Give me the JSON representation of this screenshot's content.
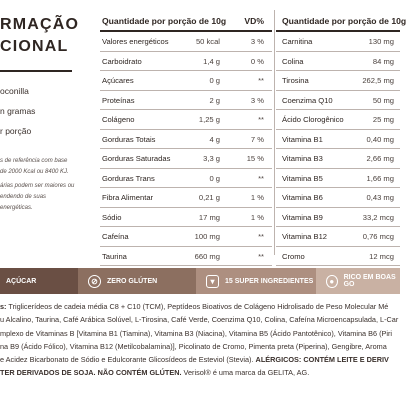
{
  "left_panel": {
    "title_line1": "RMAÇÃO",
    "title_line2": "CIONAL",
    "info": [
      "oconilla",
      "n gramas",
      "r porção"
    ],
    "footnote": [
      "s de referência com base",
      "de 2000 Kcal ou 8400 KJ.",
      "árias podem ser maiores ou",
      "endendo de suas",
      "energéticas."
    ]
  },
  "table_left": {
    "header": {
      "qty": "Quantidade por porção de 10g",
      "vd": "VD%"
    },
    "rows": [
      {
        "name": "Valores energéticos",
        "qty": "50 kcal",
        "vd": "3 %"
      },
      {
        "name": "Carboidrato",
        "qty": "1,4 g",
        "vd": "0 %"
      },
      {
        "name": "Açúcares",
        "qty": "0 g",
        "vd": "**"
      },
      {
        "name": "Proteínas",
        "qty": "2 g",
        "vd": "3 %"
      },
      {
        "name": "Colágeno",
        "qty": "1,25 g",
        "vd": "**"
      },
      {
        "name": "Gorduras Totais",
        "qty": "4 g",
        "vd": "7 %"
      },
      {
        "name": "Gorduras Saturadas",
        "qty": "3,3 g",
        "vd": "15 %"
      },
      {
        "name": "Gorduras Trans",
        "qty": "0 g",
        "vd": "**"
      },
      {
        "name": "Fibra Alimentar",
        "qty": "0,21 g",
        "vd": "1 %"
      },
      {
        "name": "Sódio",
        "qty": "17 mg",
        "vd": "1 %"
      },
      {
        "name": "Cafeína",
        "qty": "100 mg",
        "vd": "**"
      },
      {
        "name": "Taurina",
        "qty": "660 mg",
        "vd": "**"
      }
    ]
  },
  "table_right": {
    "header": {
      "qty": "Quantidade por porção de 10g"
    },
    "rows": [
      {
        "name": "Carnitina",
        "qty": "130 mg"
      },
      {
        "name": "Colina",
        "qty": "84 mg"
      },
      {
        "name": "Tirosina",
        "qty": "262,5 mg"
      },
      {
        "name": "Coenzima Q10",
        "qty": "50 mg"
      },
      {
        "name": "Ácido Clorogênico",
        "qty": "25 mg"
      },
      {
        "name": "Vitamina B1",
        "qty": "0,40 mg"
      },
      {
        "name": "Vitamina B3",
        "qty": "2,66 mg"
      },
      {
        "name": "Vitamina B5",
        "qty": "1,66 mg"
      },
      {
        "name": "Vitamina B6",
        "qty": "0,43 mg"
      },
      {
        "name": "Vitamina B9",
        "qty": "33,2 mcg"
      },
      {
        "name": "Vitamina B12",
        "qty": "0,76 mcg"
      },
      {
        "name": "Cromo",
        "qty": "12 mcg"
      }
    ]
  },
  "badges": [
    {
      "label": "AÇÚCAR",
      "icon": "no-sugar-icon",
      "color": "#6a4f44"
    },
    {
      "label": "ZERO GLÚTEN",
      "icon": "no-gluten-icon",
      "color": "#8c6f60"
    },
    {
      "label": "15 SUPER INGREDIENTES",
      "icon": "ingredients-icon",
      "color": "#ad8f80"
    },
    {
      "label": "RICO EM BOAS GO",
      "icon": "good-fats-icon",
      "color": "#c9b1a3"
    }
  ],
  "ingredients": {
    "line1_bold": "s:",
    "line1": " Triglicerídeos de cadeia média C8 + C10 (TCM), Peptídeos Bioativos de Colágeno Hidrolisado de Peso Molecular Mé",
    "line2": "u Alcalino, Taurina, Café Arábica Solúvel, L-Tirosina, Café Verde, Coenzima Q10, Colina, Cafeína Microencapsulada, L-Car",
    "line3": "mplexo de Vitaminas B [Vitamina B1 (Tiamina), Vitamina B3 (Niacina), Vitamina B5 (Ácido Pantotênico), Vitamina B6 (Piri",
    "line4": "na B9 (Ácido Fólico), Vitamina B12 (Metilcobalamina)], Picolinato de Cromo, Pimenta preta (Piperina), Gengibre, Aroma",
    "line5_normal": "e Acidez Bicarbonato de Sódio e Edulcorante Glicosídeos de Esteviol (Stevia). ",
    "line5_bold": "ALÉRGICOS: CONTÉM LEITE E DERIV",
    "line6_bold": "TER DERIVADOS DE SOJA. NÃO CONTÉM GLÚTEN.",
    "line6_normal": " Verisol® é uma marca da GELITA, AG."
  }
}
